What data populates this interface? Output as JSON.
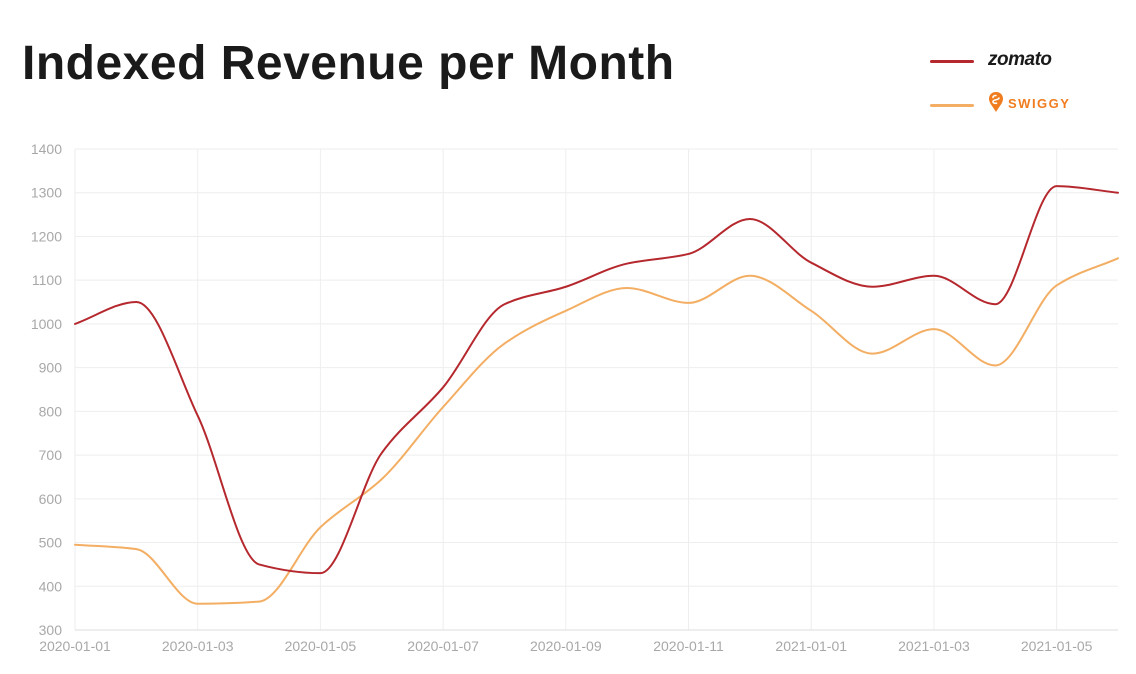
{
  "colors": {
    "zomato": "#b5282e",
    "swiggy": "#f3ae63",
    "grid": "#eeeeee",
    "tick": "#a8a8a8"
  },
  "legend": {
    "zomato_label": "zomato",
    "swiggy_label": "SWIGGY",
    "swiggy_icon": "swiggy-pin-icon"
  },
  "chart_data": {
    "type": "line",
    "title": "Indexed Revenue per Month",
    "xlabel": "",
    "ylabel": "",
    "ylim": [
      300,
      1400
    ],
    "yticks": [
      300,
      400,
      500,
      600,
      700,
      800,
      900,
      1000,
      1100,
      1200,
      1300,
      1400
    ],
    "x": [
      "2020-01-01",
      "2020-01-02",
      "2020-01-03",
      "2020-01-04",
      "2020-01-05",
      "2020-01-06",
      "2020-01-07",
      "2020-01-08",
      "2020-01-09",
      "2020-01-10",
      "2020-01-11",
      "2020-01-12",
      "2021-01-01",
      "2021-01-02",
      "2021-01-03",
      "2021-01-04",
      "2021-01-05",
      "2021-01-06"
    ],
    "xtick_labels": [
      "2020-01-01",
      "",
      "2020-01-03",
      "",
      "2020-01-05",
      "",
      "2020-01-07",
      "",
      "2020-01-09",
      "",
      "2020-01-11",
      "",
      "2021-01-01",
      "",
      "2021-01-03",
      "",
      "2021-01-05",
      ""
    ],
    "grid": true,
    "legend_position": "top-right",
    "series": [
      {
        "name": "zomato",
        "color": "#b5282e",
        "values": [
          1000,
          1050,
          790,
          450,
          430,
          705,
          855,
          1045,
          1085,
          1138,
          1160,
          1240,
          1140,
          1085,
          1110,
          1045,
          1315,
          1300
        ]
      },
      {
        "name": "swiggy",
        "color": "#f3ae63",
        "values": [
          495,
          485,
          360,
          365,
          535,
          645,
          810,
          955,
          1030,
          1082,
          1048,
          1110,
          1030,
          932,
          988,
          905,
          1088,
          1150
        ]
      }
    ]
  }
}
